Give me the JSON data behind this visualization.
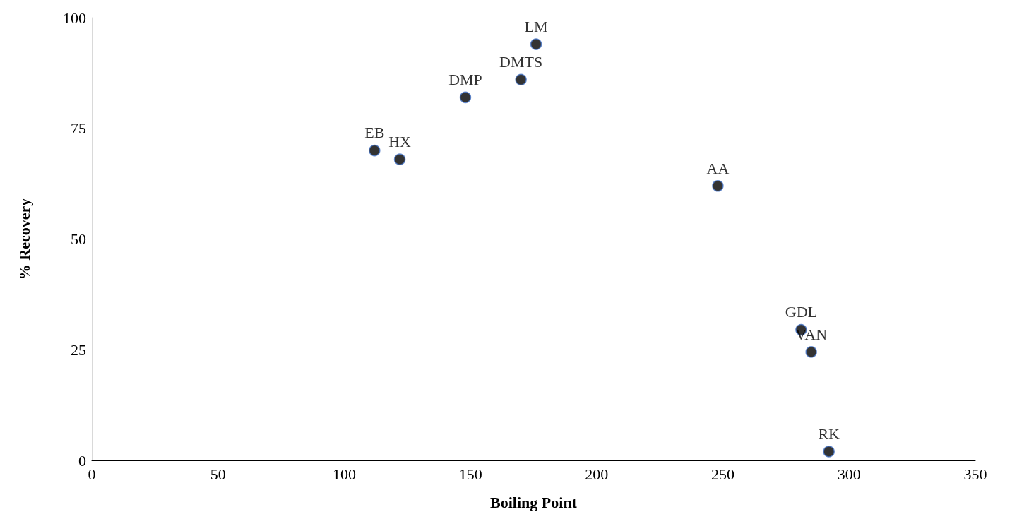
{
  "chart_data": {
    "type": "scatter",
    "xlabel": "Boiling Point",
    "ylabel": "% Recovery",
    "x": [
      112,
      122,
      148,
      170,
      176,
      248,
      281,
      285,
      292
    ],
    "series": [
      {
        "color": "#000000",
        "values": [
          70,
          68,
          82,
          86,
          94,
          62,
          29.5,
          24.5,
          2
        ],
        "value_labels": [
          "EB",
          "HX",
          "DMP",
          "DMTS",
          "LM",
          "AA",
          "GDL",
          "VAN",
          "RK"
        ]
      }
    ],
    "xlim": [
      0,
      350
    ],
    "xticks": [
      0,
      50,
      100,
      150,
      200,
      250,
      300,
      350
    ],
    "ylim": [
      0,
      100
    ],
    "yticks": [
      0,
      25,
      50,
      75,
      100
    ],
    "grid": false,
    "marker": "circle"
  }
}
